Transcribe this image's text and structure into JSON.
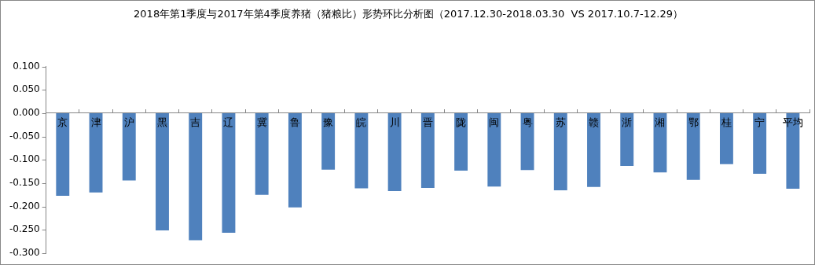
{
  "chart_data": {
    "type": "bar",
    "title": "2018年第1季度与2017年第4季度养猪（猪粮比）形势环比分析图（2017.12.30-2018.03.30  VS 2017.10.7-12.29）",
    "categories": [
      "京",
      "津",
      "沪",
      "黑",
      "吉",
      "辽",
      "冀",
      "鲁",
      "豫",
      "皖",
      "川",
      "晋",
      "陇",
      "闽",
      "粤",
      "苏",
      "赣",
      "浙",
      "湘",
      "鄂",
      "桂",
      "宁",
      "平均"
    ],
    "values": [
      -0.177,
      -0.17,
      -0.144,
      -0.251,
      -0.272,
      -0.256,
      -0.175,
      -0.202,
      -0.121,
      -0.161,
      -0.167,
      -0.16,
      -0.123,
      -0.157,
      -0.122,
      -0.165,
      -0.158,
      -0.113,
      -0.127,
      -0.143,
      -0.109,
      -0.13,
      -0.162
    ],
    "color": "#4f81bd",
    "ylim": [
      -0.3,
      0.1
    ],
    "yticks": [
      {
        "value": -0.3,
        "label": "-0.300"
      },
      {
        "value": -0.25,
        "label": "-0.250"
      },
      {
        "value": -0.2,
        "label": "-0.200"
      },
      {
        "value": -0.15,
        "label": "-0.150"
      },
      {
        "value": -0.1,
        "label": "-0.100"
      },
      {
        "value": -0.05,
        "label": "-0.050"
      },
      {
        "value": 0,
        "label": "0.000"
      },
      {
        "value": 0.05,
        "label": "0.050"
      },
      {
        "value": 0.1,
        "label": "0.100"
      }
    ],
    "grid": false,
    "legend": false
  }
}
